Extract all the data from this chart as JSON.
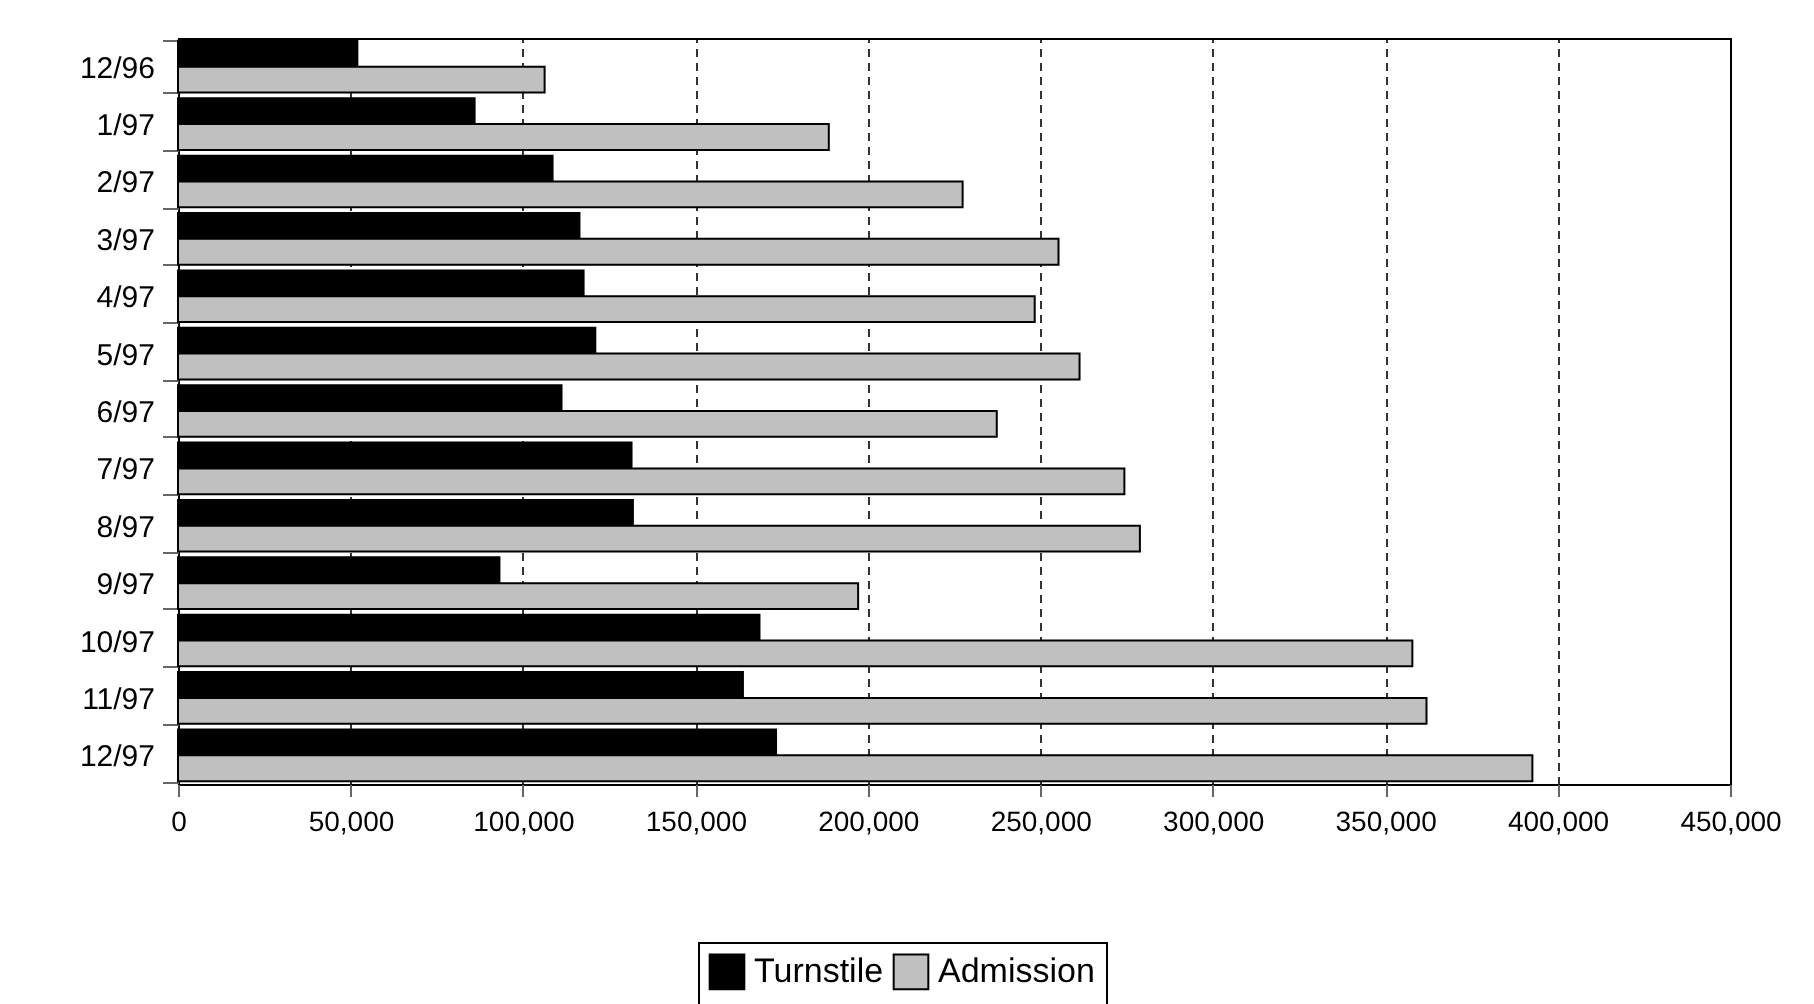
{
  "chart_data": {
    "type": "bar",
    "orientation": "horizontal",
    "categories": [
      "12/96",
      "1/97",
      "2/97",
      "3/97",
      "4/97",
      "5/97",
      "6/97",
      "7/97",
      "8/97",
      "9/97",
      "10/97",
      "11/97",
      "12/97"
    ],
    "series": [
      {
        "name": "Turnstile",
        "color": "#000000",
        "values": [
          52000,
          86000,
          108600,
          116400,
          117600,
          121000,
          111200,
          131500,
          131900,
          93200,
          168600,
          163800,
          173400
        ]
      },
      {
        "name": "Admission",
        "color": "#c0c0c0",
        "values": [
          106300,
          188700,
          227500,
          255300,
          248400,
          261400,
          237400,
          274400,
          278900,
          197200,
          357900,
          362000,
          392700
        ]
      }
    ],
    "xlim": [
      0,
      450000
    ],
    "xticks": [
      0,
      {
        "value": 50000,
        "label": "50,000"
      },
      {
        "value": 100000,
        "label": "100,000"
      },
      {
        "value": 150000,
        "label": "150,000"
      },
      {
        "value": 200000,
        "label": "200,000"
      },
      {
        "value": 250000,
        "label": "250,000"
      },
      {
        "value": 300000,
        "label": "300,000"
      },
      {
        "value": 350000,
        "label": "350,000"
      },
      {
        "value": 400000,
        "label": "400,000"
      },
      {
        "value": 450000,
        "label": "450,000"
      }
    ],
    "grid": "x",
    "legend": "bottom"
  }
}
